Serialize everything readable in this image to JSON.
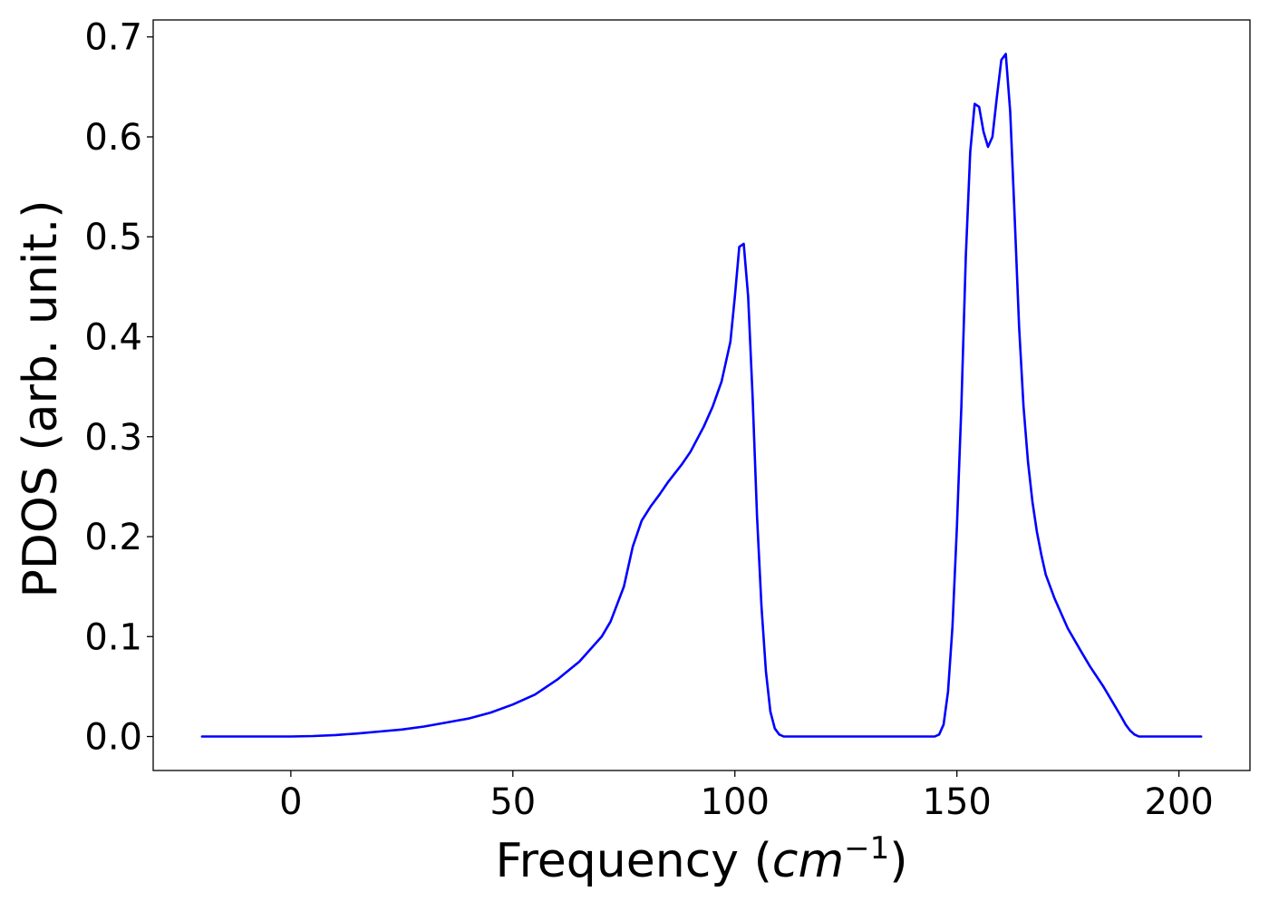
{
  "chart_data": {
    "type": "line",
    "title": "",
    "xlabel": "Frequency (",
    "xlabel_math": "cm",
    "xlabel_exponent": "−1",
    "xlabel_suffix": ")",
    "ylabel": "PDOS (arb. unit.)",
    "xlim": [
      -31,
      216
    ],
    "ylim": [
      -0.034,
      0.717
    ],
    "xticks": [
      0,
      50,
      100,
      150,
      200
    ],
    "xtick_labels": [
      "0",
      "50",
      "100",
      "150",
      "200"
    ],
    "yticks": [
      0.0,
      0.1,
      0.2,
      0.3,
      0.4,
      0.5,
      0.6,
      0.7
    ],
    "ytick_labels": [
      "0.0",
      "0.1",
      "0.2",
      "0.3",
      "0.4",
      "0.5",
      "0.6",
      "0.7"
    ],
    "grid": false,
    "series": [
      {
        "color": "#0000ff",
        "x": [
          -20,
          0,
          5,
          10,
          15,
          20,
          25,
          30,
          35,
          40,
          45,
          50,
          55,
          60,
          65,
          70,
          72,
          75,
          77,
          79,
          81,
          83,
          85,
          88,
          90,
          93,
          95,
          97,
          98,
          99,
          100,
          101,
          102,
          103,
          104,
          105,
          106,
          107,
          108,
          109,
          110,
          111,
          112,
          120,
          130,
          140,
          145,
          146,
          147,
          148,
          149,
          150,
          151,
          152,
          153,
          154,
          155,
          156,
          157,
          158,
          159,
          160,
          161,
          162,
          163,
          164,
          165,
          166,
          167,
          168,
          169,
          170,
          172,
          175,
          178,
          180,
          183,
          185,
          187,
          188,
          189,
          190,
          191,
          195,
          200,
          205
        ],
        "y": [
          0.0,
          0.0,
          0.0005,
          0.0015,
          0.003,
          0.005,
          0.007,
          0.01,
          0.014,
          0.018,
          0.024,
          0.032,
          0.042,
          0.057,
          0.075,
          0.1,
          0.115,
          0.15,
          0.19,
          0.216,
          0.23,
          0.242,
          0.255,
          0.272,
          0.285,
          0.31,
          0.33,
          0.355,
          0.375,
          0.395,
          0.44,
          0.49,
          0.493,
          0.44,
          0.34,
          0.22,
          0.13,
          0.065,
          0.025,
          0.008,
          0.002,
          0.0,
          0.0,
          0.0,
          0.0,
          0.0,
          0.0,
          0.002,
          0.012,
          0.045,
          0.11,
          0.21,
          0.33,
          0.48,
          0.585,
          0.633,
          0.63,
          0.605,
          0.59,
          0.6,
          0.64,
          0.677,
          0.683,
          0.625,
          0.52,
          0.41,
          0.33,
          0.275,
          0.235,
          0.205,
          0.182,
          0.162,
          0.138,
          0.108,
          0.085,
          0.07,
          0.05,
          0.035,
          0.02,
          0.012,
          0.006,
          0.002,
          0.0,
          0.0,
          0.0,
          0.0
        ]
      }
    ]
  }
}
